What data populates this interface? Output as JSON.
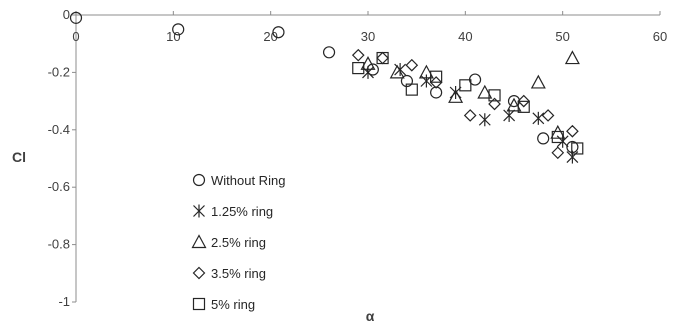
{
  "chart_data": {
    "type": "scatter",
    "xlabel": "α",
    "ylabel": "Cl",
    "xlim": [
      0,
      60
    ],
    "ylim": [
      -1,
      0
    ],
    "xticks": [
      "0",
      "10",
      "20",
      "30",
      "40",
      "50",
      "60"
    ],
    "yticks": [
      "0",
      "-0.2",
      "-0.4",
      "-0.6",
      "-0.8",
      "-1"
    ],
    "grid": false,
    "legend_position": "left-inside",
    "series": [
      {
        "name": "Without Ring",
        "marker": "circle",
        "points": [
          [
            0,
            -0.01
          ],
          [
            10.5,
            -0.05
          ],
          [
            20.8,
            -0.06
          ],
          [
            26,
            -0.13
          ],
          [
            30.5,
            -0.19
          ],
          [
            34,
            -0.23
          ],
          [
            37,
            -0.27
          ],
          [
            41,
            -0.225
          ],
          [
            45,
            -0.3
          ],
          [
            48,
            -0.43
          ],
          [
            51,
            -0.46
          ]
        ]
      },
      {
        "name": "1.25% ring",
        "marker": "asterisk",
        "points": [
          [
            30,
            -0.2
          ],
          [
            33.3,
            -0.19
          ],
          [
            36,
            -0.23
          ],
          [
            39,
            -0.27
          ],
          [
            42,
            -0.365
          ],
          [
            44.5,
            -0.35
          ],
          [
            47.5,
            -0.36
          ],
          [
            50,
            -0.44
          ],
          [
            51,
            -0.495
          ]
        ]
      },
      {
        "name": "2.5% ring",
        "marker": "triangle",
        "points": [
          [
            30,
            -0.17
          ],
          [
            33,
            -0.2
          ],
          [
            36,
            -0.2
          ],
          [
            39,
            -0.285
          ],
          [
            42,
            -0.27
          ],
          [
            45,
            -0.315
          ],
          [
            47.5,
            -0.235
          ],
          [
            49.5,
            -0.41
          ],
          [
            51,
            -0.15
          ]
        ]
      },
      {
        "name": "3.5% ring",
        "marker": "diamond",
        "points": [
          [
            29,
            -0.14
          ],
          [
            31.5,
            -0.15
          ],
          [
            34.5,
            -0.175
          ],
          [
            37,
            -0.235
          ],
          [
            40.5,
            -0.35
          ],
          [
            43,
            -0.31
          ],
          [
            46,
            -0.3
          ],
          [
            48.5,
            -0.35
          ],
          [
            49.5,
            -0.48
          ],
          [
            51,
            -0.405
          ]
        ]
      },
      {
        "name": "5% ring",
        "marker": "square",
        "points": [
          [
            29,
            -0.185
          ],
          [
            31.5,
            -0.15
          ],
          [
            34.5,
            -0.26
          ],
          [
            37,
            -0.215
          ],
          [
            40,
            -0.245
          ],
          [
            43,
            -0.28
          ],
          [
            46,
            -0.32
          ],
          [
            49.5,
            -0.425
          ],
          [
            51.5,
            -0.465
          ]
        ]
      }
    ]
  }
}
